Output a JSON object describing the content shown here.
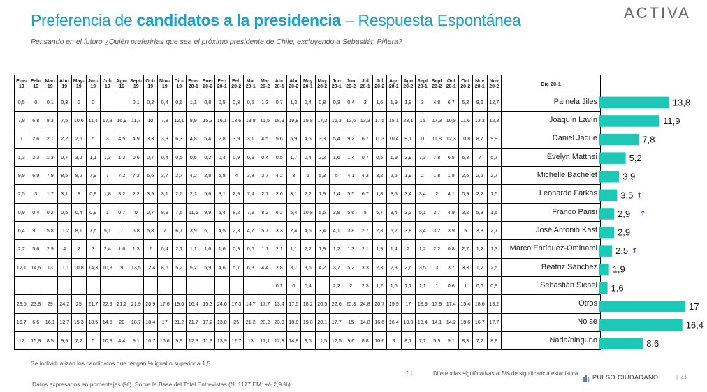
{
  "header": {
    "title_part1": "Preferencia de ",
    "title_bold": "candidatos a la presidencia",
    "title_part2": " – Respuesta Espontánea",
    "subtitle": "Pensando en el futuro ¿Quién preferirías que sea el próximo presidente de Chile, excluyendo a Sebastián Piñera?",
    "logo": "ACTIVA"
  },
  "table": {
    "columns": [
      "Ene-19",
      "Feb-19",
      "Mar-19",
      "Abr-19",
      "May-19",
      "Jun-19",
      "Jul-19",
      "Ago-19",
      "Sept-19",
      "Oct-19",
      "Nov-19",
      "Dic-19",
      "Ene-20-1",
      "Ene-20-2",
      "Feb 20-1",
      "Feb 20-2",
      "Mar 20-1",
      "Mar 20-2",
      "Abr 20-1",
      "Abr 20-2",
      "May 20-1",
      "May 20-2",
      "Jun 20-1",
      "Jun 20-2",
      "Jul 20-1",
      "Jul 20-2",
      "Ago 20-1",
      "Ago 20-2",
      "Sept 20-1",
      "Sept 20-2",
      "Oct 20-1",
      "Oct 20-2",
      "Nov 20-1",
      "Nov 20-2"
    ],
    "last_header": "Dic 20-1",
    "rows": [
      {
        "name": "Pamela Jiles",
        "values": [
          "0,5",
          "0",
          "0,1",
          "0,3",
          "0",
          "0",
          "",
          "",
          "0,1",
          "0,2",
          "0,4",
          "0,6",
          "1,1",
          "0,8",
          "0,5",
          "0,3",
          "0,6",
          "1,3",
          "0,7",
          "1,3",
          "0,4",
          "0,8",
          "0,3",
          "0,4",
          "3",
          "1,6",
          "1,9",
          "1,9",
          "3",
          "4,8",
          "6,7",
          "5,2",
          "9,6",
          "12,7"
        ]
      },
      {
        "name": "Joaquín Lavín",
        "values": [
          "7,9",
          "6,8",
          "8,3",
          "7,5",
          "10,6",
          "11,4",
          "17,8",
          "16,9",
          "11,7",
          "10",
          "7,8",
          "12,1",
          "8,9",
          "15,3",
          "16,1",
          "13,6",
          "13,8",
          "11,5",
          "18,9",
          "19,8",
          "15,8",
          "17,3",
          "16,3",
          "12,6",
          "13,3",
          "17,5",
          "15,1",
          "23,1",
          "15",
          "17,3",
          "10,9",
          "11,6",
          "13,3",
          "12,3"
        ]
      },
      {
        "name": "Daniel Jadue",
        "values": [
          "1",
          "2,6",
          "2,1",
          "2,2",
          "2,6",
          "5",
          "3",
          "4,5",
          "4,9",
          "3,3",
          "3,3",
          "6,3",
          "4,8",
          "5,4",
          "2,8",
          "3,9",
          "3,1",
          "4,5",
          "5,6",
          "5,9",
          "4,5",
          "3,3",
          "5,4",
          "9,2",
          "6,7",
          "11,3",
          "10,4",
          "9,1",
          "11",
          "11,8",
          "12,3",
          "10,8",
          "8,7",
          "9,9"
        ]
      },
      {
        "name": "Evelyn Matthei",
        "values": [
          "1,3",
          "2,3",
          "1,3",
          "0,7",
          "3,2",
          "1,1",
          "1,3",
          "1,3",
          "0,6",
          "0,7",
          "0,4",
          "0,5",
          "0,6",
          "0,2",
          "0,4",
          "0,9",
          "0,9",
          "0,4",
          "0,5",
          "1,7",
          "0,4",
          "2,2",
          "1,6",
          "1,4",
          "0,7",
          "0,5",
          "1,9",
          "3,9",
          "7,3",
          "7,8",
          "6,5",
          "6,3",
          "7",
          "5,7"
        ]
      },
      {
        "name": "Michelle Bachelet",
        "values": [
          "9,9",
          "6,9",
          "7,9",
          "8,5",
          "8,2",
          "7,9",
          "7",
          "7,2",
          "7,2",
          "6,6",
          "3,7",
          "2,7",
          "4,2",
          "2,8",
          "5,8",
          "4",
          "3,8",
          "3,7",
          "4,2",
          "3",
          "5",
          "5,3",
          "5",
          "4,1",
          "4,3",
          "3,2",
          "2,6",
          "1,9",
          "2",
          "1,8",
          "1,8",
          "2,5",
          "2,5",
          "2,7"
        ]
      },
      {
        "name": "Leonardo Farkas",
        "values": [
          "2,5",
          "3",
          "1,7",
          "3,1",
          "3",
          "0,8",
          "1,8",
          "3,2",
          "2,2",
          "3,9",
          "3,1",
          "2,6",
          "2,1",
          "5,6",
          "3,1",
          "2,9",
          "7,4",
          "2,1",
          "2,6",
          "3,1",
          "2,2",
          "1,9",
          "1,4",
          "5,5",
          "6,7",
          "1,8",
          "3,5",
          "3,4",
          "3,4",
          "2",
          "4,1",
          "0,9",
          "2,2",
          "1,5"
        ]
      },
      {
        "name": "Franco Parisi",
        "values": [
          "0,9",
          "0,4",
          "0,2",
          "0,5",
          "0,4",
          "0,9",
          "1",
          "0,7",
          "0",
          "0,7",
          "9,9",
          "7,5",
          "11,6",
          "9,9",
          "6,4",
          "8,2",
          "7,9",
          "8,2",
          "6,2",
          "5,4",
          "10,8",
          "5,5",
          "3,8",
          "5,6",
          "5",
          "5,7",
          "3,4",
          "3,2",
          "5,1",
          "3,7",
          "4,9",
          "3,2",
          "5,3",
          "1,5"
        ]
      },
      {
        "name": "José Antonio Kast",
        "values": [
          "6,4",
          "9,1",
          "5,8",
          "11,2",
          "8,1",
          "7,6",
          "5,1",
          "7",
          "6,8",
          "5,8",
          "7",
          "6,7",
          "3,9",
          "6,1",
          "4,5",
          "2,3",
          "4,7",
          "5,7",
          "3,3",
          "2,4",
          "4,5",
          "3,4",
          "4,1",
          "3,8",
          "2,7",
          "2,8",
          "5,2",
          "3,8",
          "3,4",
          "3,2",
          "3,9",
          "5",
          "3,3",
          "2,7"
        ]
      },
      {
        "name": "Marco Enríquez-Ominami",
        "values": [
          "2,2",
          "5,6",
          "2,9",
          "4",
          "2",
          "3",
          "2,4",
          "1,6",
          "1,3",
          "2",
          "0,4",
          "2,1",
          "1,1",
          "1,6",
          "1,6",
          "0,9",
          "0,6",
          "1,1",
          "2,1",
          "1,1",
          "2,2",
          "1,9",
          "1,2",
          "1,3",
          "2,1",
          "1,9",
          "1,4",
          "2",
          "1,2",
          "2,2",
          "0,8",
          "2,7",
          "1,2",
          "1,3"
        ]
      },
      {
        "name": "Beatriz Sánchez",
        "values": [
          "12,1",
          "14,6",
          "13",
          "11,1",
          "10,8",
          "14,3",
          "10,3",
          "9",
          "13,5",
          "12,4",
          "8,6",
          "5,2",
          "5,2",
          "5,9",
          "4,6",
          "5,7",
          "6,3",
          "4,4",
          "2,8",
          "3,7",
          "3,5",
          "4,2",
          "3,7",
          "5,2",
          "3,3",
          "2,3",
          "2,3",
          "2,6",
          "3,5",
          "3",
          "3,7",
          "3,3",
          "1,2",
          "2,5"
        ]
      },
      {
        "name": "Sebastián Sichel",
        "values": [
          "",
          "",
          "",
          "",
          "",
          "",
          "",
          "",
          "",
          "",
          "",
          "",
          "",
          "",
          "",
          "",
          "",
          "",
          "0,1",
          "0",
          "0,4",
          "",
          "2,2",
          "2",
          "2,3",
          "1,2",
          "1,5",
          "1,1",
          "1,1",
          "1",
          "0,6",
          "1",
          "0,6",
          "0,9"
        ]
      },
      {
        "name": "Otros",
        "values": [
          "23,5",
          "23,8",
          "29",
          "24,2",
          "25",
          "21,7",
          "22,9",
          "21,2",
          "21,9",
          "20,9",
          "17,6",
          "19,6",
          "16,4",
          "15,3",
          "24,6",
          "17,3",
          "14,7",
          "17,7",
          "13,4",
          "17,5",
          "18,2",
          "20,5",
          "22,6",
          "20,3",
          "24,8",
          "20,7",
          "19,9",
          "17",
          "18,9",
          "17,9",
          "17,4",
          "15,4",
          "18,6",
          "13,2"
        ]
      },
      {
        "name": "No se",
        "values": [
          "16,7",
          "6,6",
          "16,1",
          "12,7",
          "15,3",
          "18,5",
          "14,5",
          "20",
          "18,7",
          "18,4",
          "17",
          "21,2",
          "21,7",
          "17,2",
          "13,8",
          "25",
          "21,2",
          "20,2",
          "23,8",
          "18,8",
          "19,8",
          "20,1",
          "17,7",
          "15",
          "14,8",
          "16,6",
          "16,4",
          "13,3",
          "13,4",
          "14,1",
          "14,2",
          "18,6",
          "16,7",
          "17,7"
        ]
      },
      {
        "name": "Nada/ninguno",
        "values": [
          "12",
          "15,9",
          "8,5",
          "9,9",
          "7,2",
          "5",
          "10,3",
          "4,4",
          "9,1",
          "10,7",
          "16,6",
          "9,9",
          "12,8",
          "11,8",
          "13,9",
          "12,7",
          "13",
          "17,1",
          "12,3",
          "14,8",
          "9,5",
          "11,5",
          "12,5",
          "9,6",
          "8,8",
          "10,6",
          "9",
          "8,1",
          "7,7",
          "5,9",
          "9,1",
          "8,3",
          "7,2",
          "8,8"
        ]
      }
    ]
  },
  "chart_data": {
    "type": "bar",
    "orientation": "horizontal",
    "categories": [
      "Pamela Jiles",
      "Joaquín Lavín",
      "Daniel Jadue",
      "Evelyn Matthei",
      "Michelle Bachelet",
      "Leonardo Farkas",
      "Franco Parisi",
      "José Antonio Kast",
      "Marco Enríquez-Ominami",
      "Beatriz Sánchez",
      "Sebastián Sichel",
      "Otros",
      "No se",
      "Nada/ninguno"
    ],
    "values": [
      13.8,
      11.9,
      7.8,
      5.2,
      3.9,
      3.5,
      2.9,
      2.9,
      2.5,
      1.9,
      1.6,
      17,
      16.4,
      8.6
    ],
    "labels": [
      "13,8",
      "11,9",
      "7,8",
      "5,2",
      "3,9",
      "3,5",
      "2,9",
      "2,9",
      "2,5",
      "1,9",
      "1,6",
      "17",
      "16,4",
      "8,6"
    ],
    "arrows": [
      "",
      "",
      "",
      "",
      "",
      "up",
      "up",
      "",
      "up",
      "",
      "",
      "",
      "",
      ""
    ],
    "bar_color": "#1ec8b7",
    "up_color": "#1f2fb3",
    "down_color": "#d32020",
    "xlim": [
      0,
      17
    ],
    "series_name": "Dic 20-1"
  },
  "footer": {
    "note1": "Se individualizan los candidatos que tengan % igual o superior a 1,5.",
    "note2": "Datos expresados en porcentajes (%). Sobre la Base del Total Entrevistas (N: 1177  EM: +/- 2,9 %)",
    "legend": "Diferencias  significativas  al 5% de significancia estadística",
    "brand": "PULSO CIUDADANO",
    "separator": "|",
    "page": "41"
  }
}
